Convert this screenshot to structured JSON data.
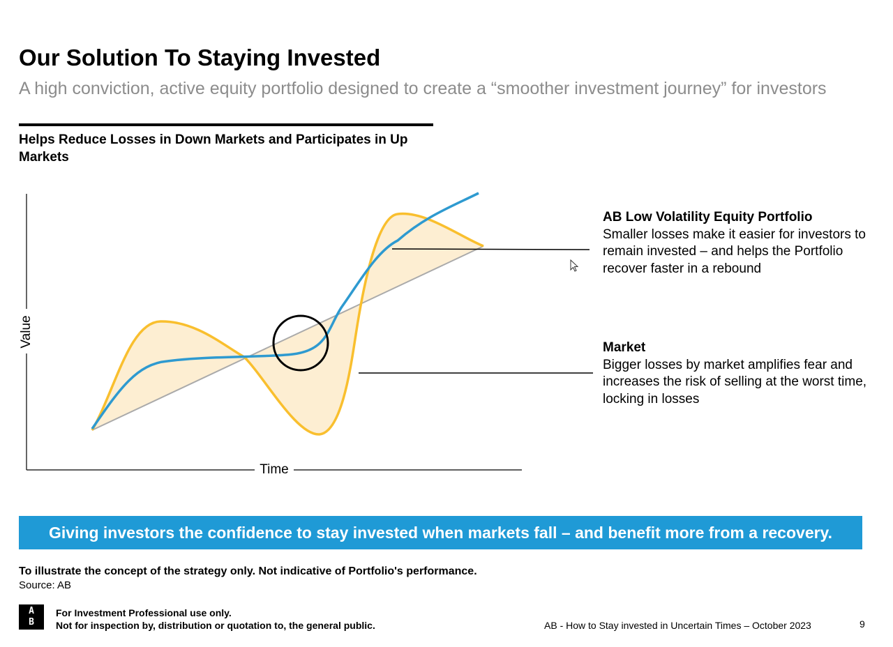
{
  "slide": {
    "title": "Our Solution To Staying Invested",
    "subtitle": "A high conviction, active equity portfolio designed to create a “smoother investment journey” for investors",
    "chart_heading": "Helps Reduce Losses in Down Markets and Participates in Up Markets"
  },
  "chart_data": {
    "type": "line",
    "title": "Helps Reduce Losses in Down Markets and Participates in Up Markets",
    "xlabel": "Time",
    "ylabel": "Value",
    "note": "Conceptual illustration; no numeric axes",
    "series": [
      {
        "name": "Trend line",
        "color": "#aaaaaa"
      },
      {
        "name": "Market",
        "color": "#f9bf2e",
        "fill": "#fdeed2"
      },
      {
        "name": "AB Low Volatility Equity Portfolio",
        "color": "#2e9ad0"
      }
    ]
  },
  "annotations": {
    "portfolio": {
      "title": "AB Low Volatility Equity Portfolio",
      "text": "Smaller losses make it easier for investors to remain invested – and helps the Portfolio recover faster in a rebound"
    },
    "market": {
      "title": "Market",
      "text": "Bigger losses by market amplifies fear and increases the risk of selling at the worst time, locking in losses"
    }
  },
  "banner": {
    "text": "Giving investors the confidence to stay invested when markets fall – and benefit more from a recovery.",
    "color": "#1f9ad6"
  },
  "notes": {
    "disclaimer": "To illustrate the concept of the strategy only. Not indicative of Portfolio's performance.",
    "source": "Source: AB"
  },
  "footer": {
    "logo_top": "A",
    "logo_bottom": "B",
    "line1": "For Investment Professional use only.",
    "line2": "Not for inspection by, distribution or quotation to, the general public.",
    "doc_title": "AB - How to Stay invested in Uncertain Times – October 2023",
    "page_number": "9"
  },
  "icons": {
    "cursor": "mouse-pointer-icon"
  }
}
